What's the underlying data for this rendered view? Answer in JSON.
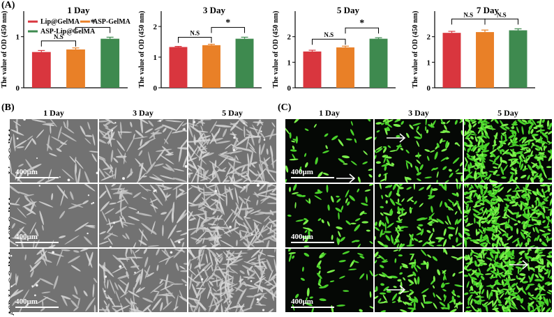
{
  "panels": {
    "a": "(A)",
    "b": "(B)",
    "c": "(C)"
  },
  "chart_data": [
    {
      "type": "bar",
      "title": "1 Day",
      "ylabel": "The value of OD (450 nm)",
      "ylim": [
        0,
        1.5
      ],
      "yticks": [
        "0",
        "1"
      ],
      "categories": [
        "Lip@GelMA",
        "ASP-GelMA",
        "ASP-Lip@GelMA"
      ],
      "values": [
        0.7,
        0.75,
        0.96
      ],
      "errors": [
        0.03,
        0.03,
        0.03
      ],
      "annotations": [
        {
          "label": "N.S",
          "from": 0,
          "to": 1
        },
        {
          "label": "*",
          "from": 1,
          "to": 2
        }
      ],
      "legend": [
        "Lip@GelMA",
        "ASP-GelMA",
        "ASP-Lip@GelMA"
      ]
    },
    {
      "type": "bar",
      "title": "3 Day",
      "ylabel": "The value of OD (450 nm)",
      "ylim": [
        0,
        2.5
      ],
      "yticks": [
        "0",
        "1",
        "2"
      ],
      "categories": [
        "Lip@GelMA",
        "ASP-GelMA",
        "ASP-Lip@GelMA"
      ],
      "values": [
        1.33,
        1.39,
        1.6
      ],
      "errors": [
        0.02,
        0.03,
        0.05
      ],
      "annotations": [
        {
          "label": "N.S",
          "from": 0,
          "to": 1
        },
        {
          "label": "*",
          "from": 1,
          "to": 2
        }
      ]
    },
    {
      "type": "bar",
      "title": "5 Day",
      "ylabel": "The value of OD (450 nm)",
      "ylim": [
        0,
        3
      ],
      "yticks": [
        "0",
        "1",
        "2"
      ],
      "categories": [
        "Lip@GelMA",
        "ASP-GelMA",
        "ASP-Lip@GelMA"
      ],
      "values": [
        1.42,
        1.58,
        1.92
      ],
      "errors": [
        0.05,
        0.05,
        0.04
      ],
      "annotations": [
        {
          "label": "N.S",
          "from": 0,
          "to": 1
        },
        {
          "label": "*",
          "from": 1,
          "to": 2
        }
      ]
    },
    {
      "type": "bar",
      "title": "7 Day",
      "ylabel": "The value of OD (450 nm)",
      "ylim": [
        0,
        3
      ],
      "yticks": [
        "0",
        "1",
        "2"
      ],
      "categories": [
        "Lip@GelMA",
        "ASP-GelMA",
        "ASP-Lip@GelMA"
      ],
      "values": [
        2.15,
        2.18,
        2.25
      ],
      "errors": [
        0.06,
        0.08,
        0.06
      ],
      "annotations": [
        {
          "label": "N.S",
          "from": 0,
          "to": 1
        },
        {
          "label": "N.S",
          "from": 1,
          "to": 2
        }
      ]
    }
  ],
  "colors": {
    "series": [
      "#d9363e",
      "#e98027",
      "#3e8a4f"
    ]
  },
  "micro_b": {
    "columns": [
      "1 Day",
      "3 Day",
      "5 Day"
    ],
    "rows": [
      "Lip@GelMA",
      "ASP-GelMA",
      "ASP-Lip@GelMA"
    ],
    "scale": "400μm"
  },
  "micro_c": {
    "columns": [
      "1 Day",
      "3 Day",
      "5 Day"
    ],
    "scale": "400μm"
  }
}
